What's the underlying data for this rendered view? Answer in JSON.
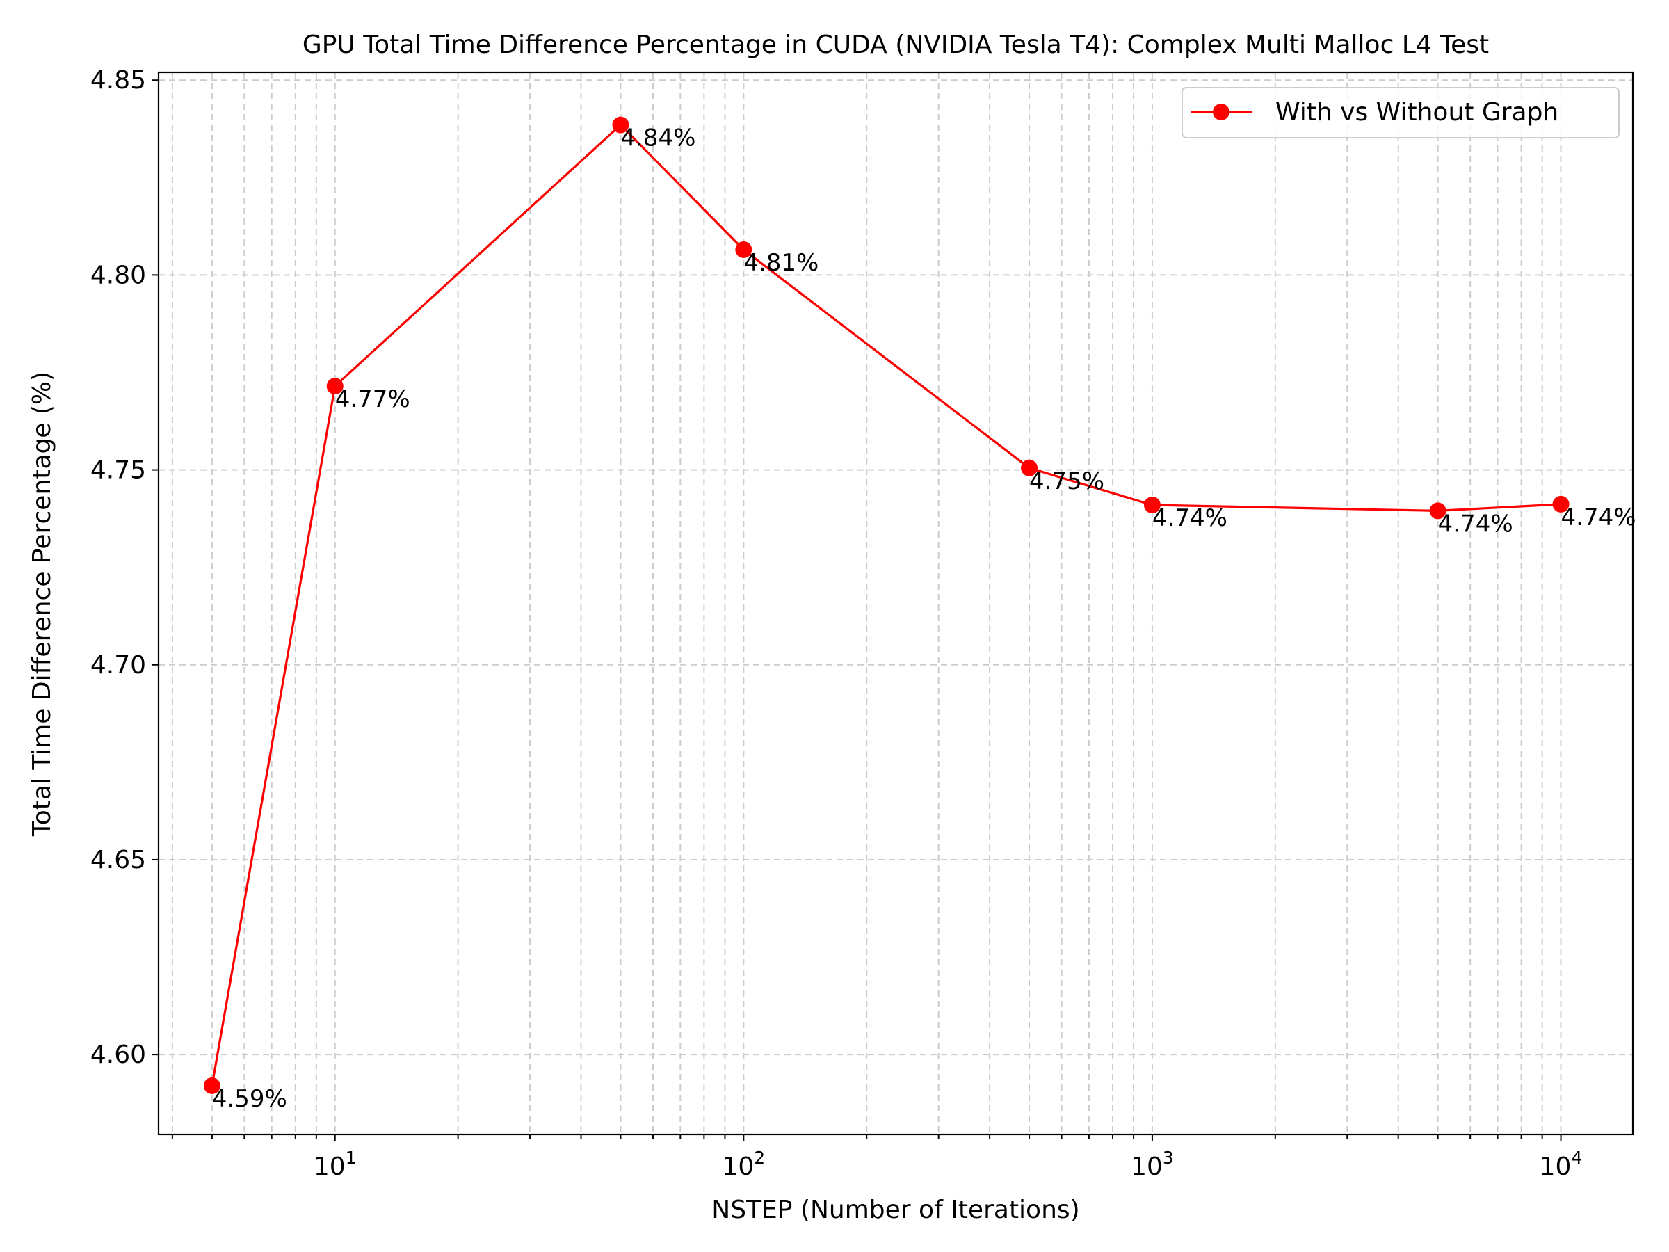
{
  "chart_data": {
    "type": "line",
    "title": "GPU Total Time Difference Percentage in CUDA (NVIDIA Tesla T4): Complex Multi Malloc L4 Test",
    "xlabel": "NSTEP (Number of Iterations)",
    "ylabel": "Total Time Difference Percentage (%)",
    "xscale": "log",
    "xlim": [
      3.7,
      15000
    ],
    "ylim": [
      4.5795,
      4.852
    ],
    "grid": true,
    "legend": {
      "placement": "top-right",
      "entries": [
        "With vs Without Graph"
      ]
    },
    "x_ticks": [
      {
        "value": 10,
        "base": "10",
        "exp": "1"
      },
      {
        "value": 100,
        "base": "10",
        "exp": "2"
      },
      {
        "value": 1000,
        "base": "10",
        "exp": "3"
      },
      {
        "value": 10000,
        "base": "10",
        "exp": "4"
      }
    ],
    "y_ticks": [
      {
        "value": 4.6,
        "label": "4.60"
      },
      {
        "value": 4.65,
        "label": "4.65"
      },
      {
        "value": 4.7,
        "label": "4.70"
      },
      {
        "value": 4.75,
        "label": "4.75"
      },
      {
        "value": 4.8,
        "label": "4.80"
      },
      {
        "value": 4.85,
        "label": "4.85"
      }
    ],
    "series": [
      {
        "name": "With vs Without Graph",
        "color": "#ff0000",
        "marker": "circle",
        "x": [
          5,
          10,
          50,
          100,
          500,
          1000,
          5000,
          10000
        ],
        "y": [
          4.592,
          4.7715,
          4.8385,
          4.8065,
          4.7505,
          4.741,
          4.7395,
          4.7412
        ],
        "labels": [
          "4.59%",
          "4.77%",
          "4.84%",
          "4.81%",
          "4.75%",
          "4.74%",
          "4.74%",
          "4.74%"
        ]
      }
    ]
  }
}
